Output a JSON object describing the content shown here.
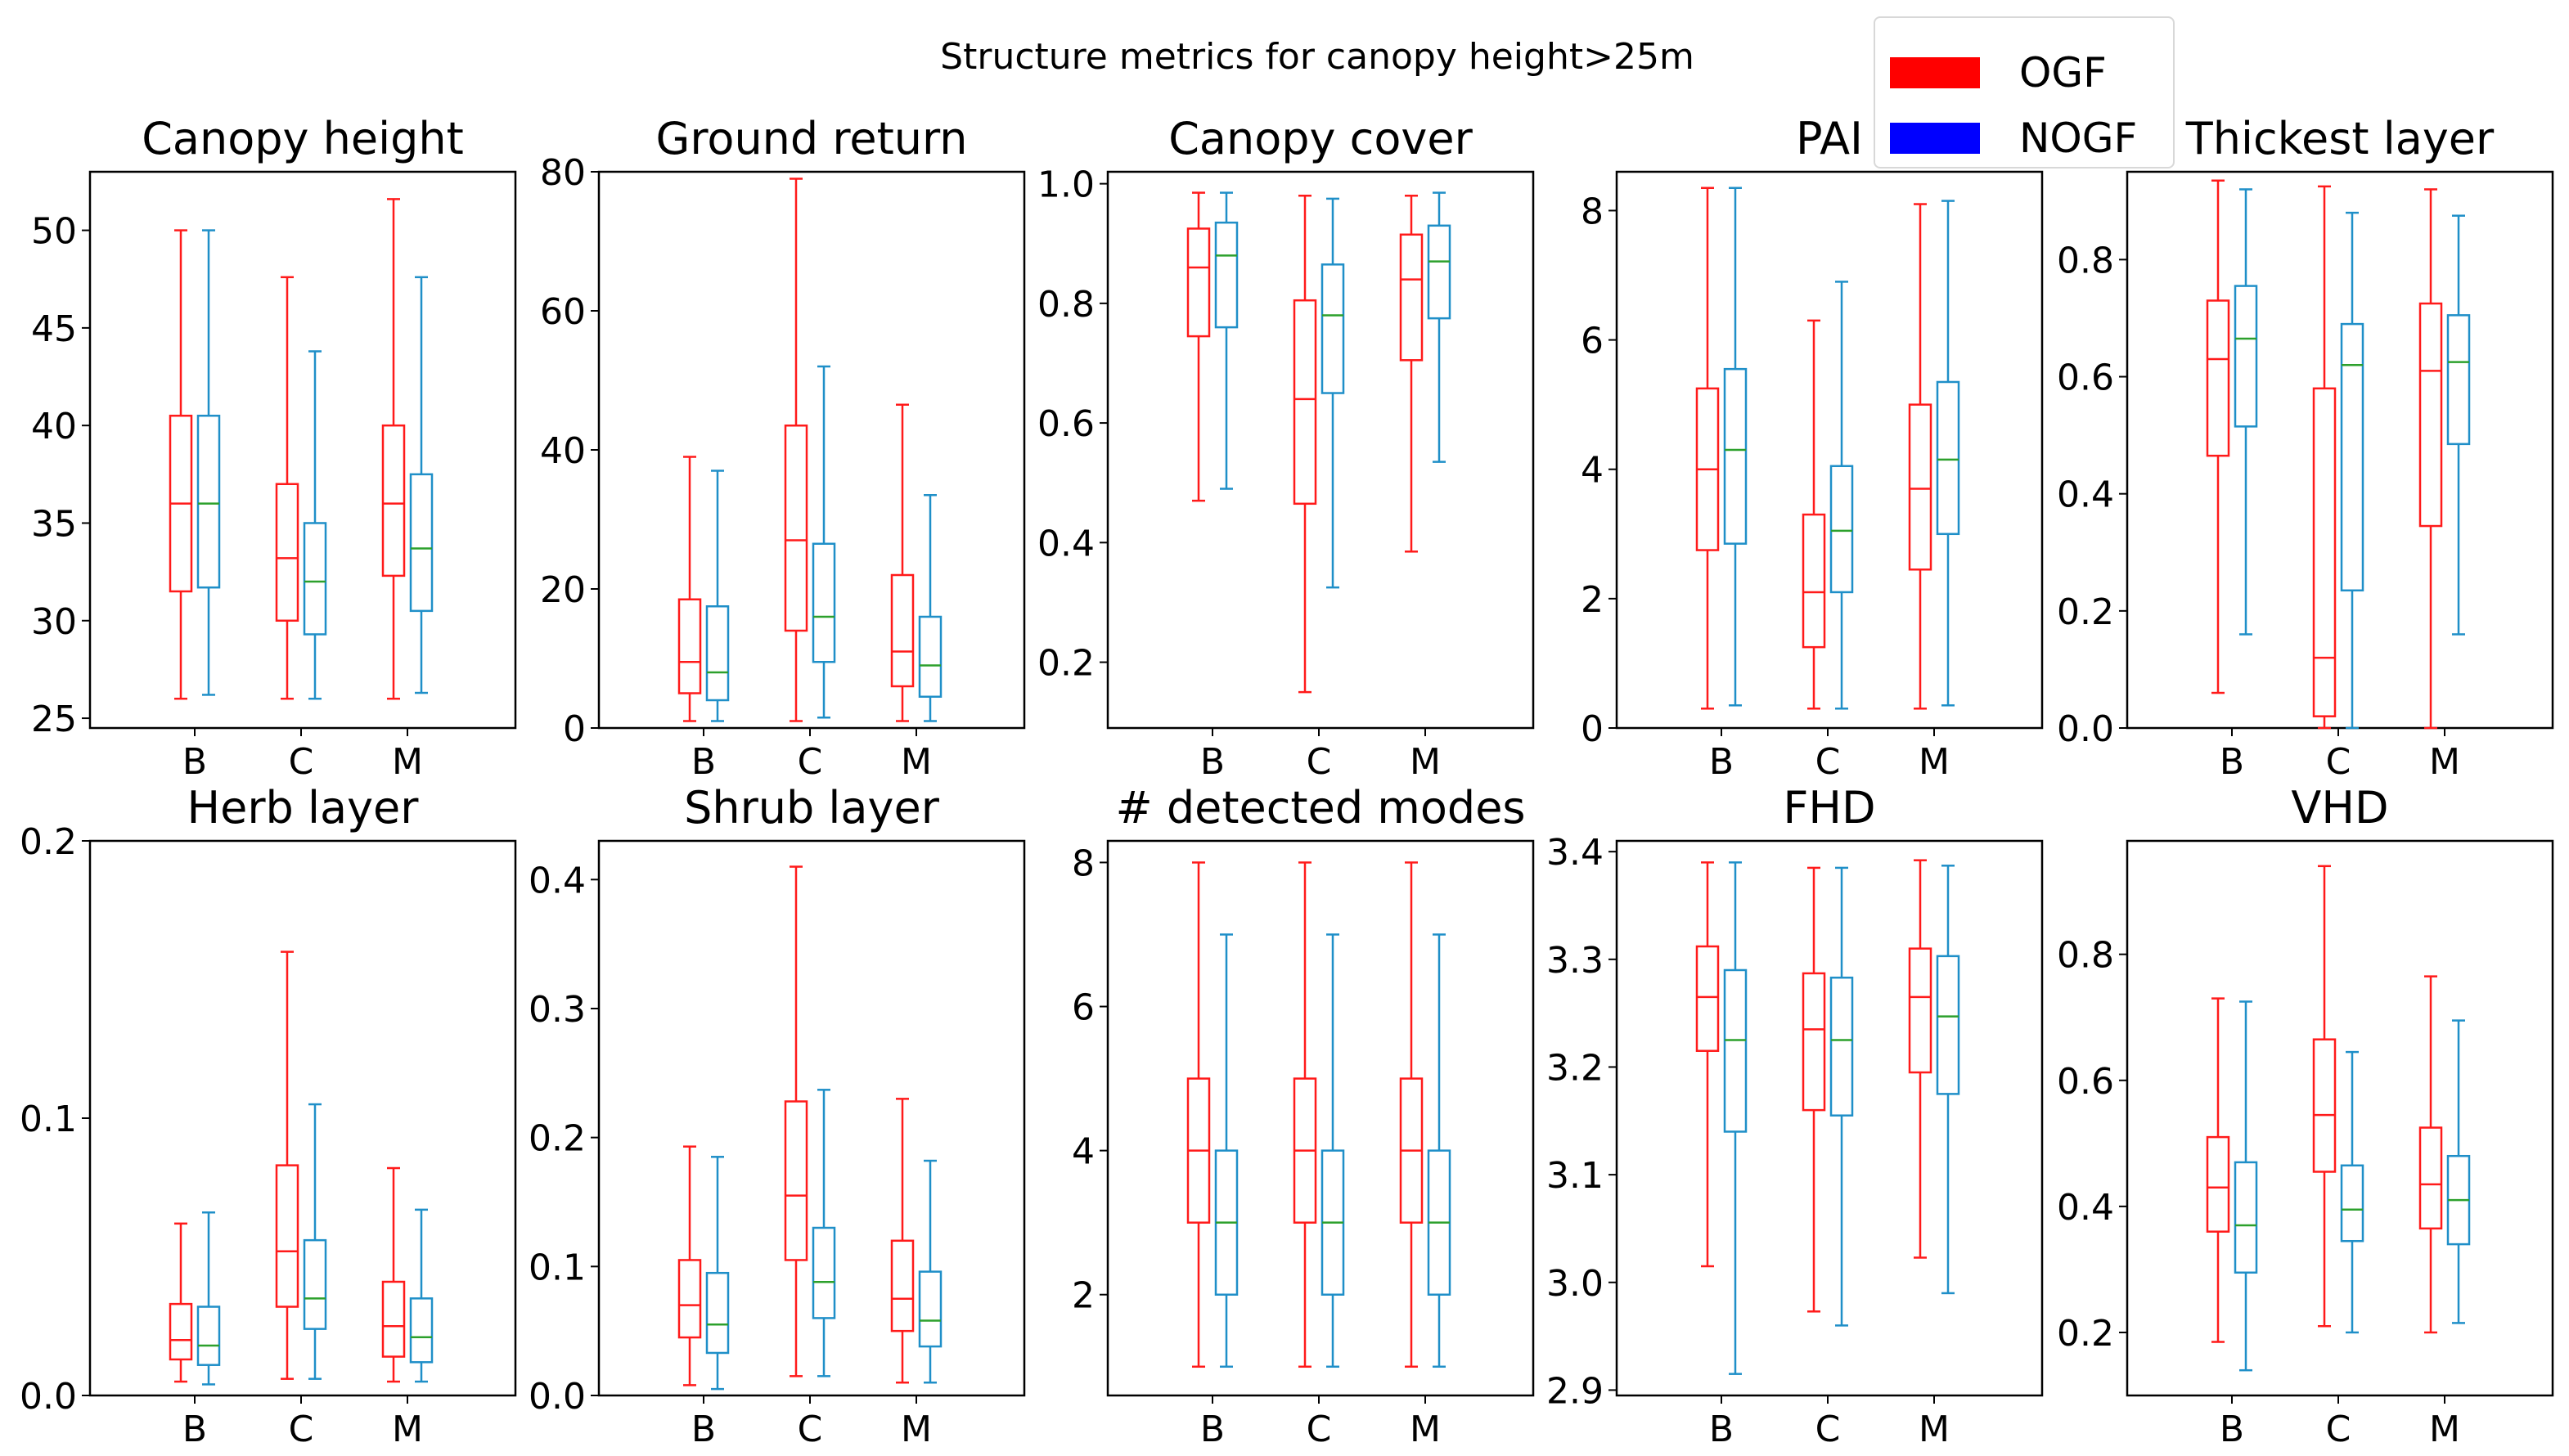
{
  "chart_data": {
    "type": "boxplot",
    "suptitle": "Structure metrics for canopy height>25m",
    "legend": {
      "position": "top-right",
      "entries": [
        {
          "name": "OGF",
          "color": "#ff0000"
        },
        {
          "name": "NOGF",
          "color": "#0000ff"
        }
      ]
    },
    "series_colors": {
      "OGF": "#ff1a1a",
      "NOGF": "#1f8fc8"
    },
    "median_colors": {
      "OGF": "#ff1a1a",
      "NOGF": "#2ca02c"
    },
    "panels": [
      {
        "title": "Canopy height",
        "categories": [
          "B",
          "C",
          "M"
        ],
        "ylim": [
          24.5,
          53
        ],
        "yticks": [
          25,
          30,
          35,
          40,
          45,
          50
        ],
        "ytick_labels": [
          "25",
          "30",
          "35",
          "40",
          "45",
          "50"
        ],
        "boxes": {
          "OGF": [
            {
              "whislo": 26,
              "q1": 31.5,
              "med": 36,
              "q3": 40.5,
              "whishi": 50
            },
            {
              "whislo": 26,
              "q1": 30,
              "med": 33.2,
              "q3": 37,
              "whishi": 47.6
            },
            {
              "whislo": 26,
              "q1": 32.3,
              "med": 36,
              "q3": 40,
              "whishi": 51.6
            }
          ],
          "NOGF": [
            {
              "whislo": 26.2,
              "q1": 31.7,
              "med": 36,
              "q3": 40.5,
              "whishi": 50
            },
            {
              "whislo": 26,
              "q1": 29.3,
              "med": 32,
              "q3": 35,
              "whishi": 43.8
            },
            {
              "whislo": 26.3,
              "q1": 30.5,
              "med": 33.7,
              "q3": 37.5,
              "whishi": 47.6
            }
          ]
        }
      },
      {
        "title": "Ground return",
        "categories": [
          "B",
          "C",
          "M"
        ],
        "ylim": [
          0,
          80
        ],
        "yticks": [
          0,
          20,
          40,
          60,
          80
        ],
        "ytick_labels": [
          "0",
          "20",
          "40",
          "60",
          "80"
        ],
        "boxes": {
          "OGF": [
            {
              "whislo": 1,
              "q1": 5,
              "med": 9.5,
              "q3": 18.5,
              "whishi": 39
            },
            {
              "whislo": 1,
              "q1": 14,
              "med": 27,
              "q3": 43.5,
              "whishi": 79
            },
            {
              "whislo": 1,
              "q1": 6,
              "med": 11,
              "q3": 22,
              "whishi": 46.5
            }
          ],
          "NOGF": [
            {
              "whislo": 1,
              "q1": 4,
              "med": 8,
              "q3": 17.5,
              "whishi": 37
            },
            {
              "whislo": 1.5,
              "q1": 9.5,
              "med": 16,
              "q3": 26.5,
              "whishi": 52
            },
            {
              "whislo": 1,
              "q1": 4.5,
              "med": 9,
              "q3": 16,
              "whishi": 33.5
            }
          ]
        }
      },
      {
        "title": "Canopy cover",
        "categories": [
          "B",
          "C",
          "M"
        ],
        "ylim": [
          0.09,
          1.02
        ],
        "yticks": [
          0.2,
          0.4,
          0.6,
          0.8,
          1.0
        ],
        "ytick_labels": [
          "0.2",
          "0.4",
          "0.6",
          "0.8",
          "1.0"
        ],
        "boxes": {
          "OGF": [
            {
              "whislo": 0.47,
              "q1": 0.745,
              "med": 0.86,
              "q3": 0.925,
              "whishi": 0.985
            },
            {
              "whislo": 0.15,
              "q1": 0.465,
              "med": 0.64,
              "q3": 0.805,
              "whishi": 0.98
            },
            {
              "whislo": 0.385,
              "q1": 0.705,
              "med": 0.84,
              "q3": 0.915,
              "whishi": 0.98
            }
          ],
          "NOGF": [
            {
              "whislo": 0.49,
              "q1": 0.76,
              "med": 0.88,
              "q3": 0.935,
              "whishi": 0.985
            },
            {
              "whislo": 0.325,
              "q1": 0.65,
              "med": 0.78,
              "q3": 0.865,
              "whishi": 0.975
            },
            {
              "whislo": 0.535,
              "q1": 0.775,
              "med": 0.87,
              "q3": 0.93,
              "whishi": 0.985
            }
          ]
        }
      },
      {
        "title": "PAI",
        "categories": [
          "B",
          "C",
          "M"
        ],
        "ylim": [
          0,
          8.6
        ],
        "yticks": [
          0,
          2,
          4,
          6,
          8
        ],
        "ytick_labels": [
          "0",
          "2",
          "4",
          "6",
          "8"
        ],
        "boxes": {
          "OGF": [
            {
              "whislo": 0.3,
              "q1": 2.75,
              "med": 4,
              "q3": 5.25,
              "whishi": 8.35
            },
            {
              "whislo": 0.3,
              "q1": 1.25,
              "med": 2.1,
              "q3": 3.3,
              "whishi": 6.3
            },
            {
              "whislo": 0.3,
              "q1": 2.45,
              "med": 3.7,
              "q3": 5,
              "whishi": 8.1
            }
          ],
          "NOGF": [
            {
              "whislo": 0.35,
              "q1": 2.85,
              "med": 4.3,
              "q3": 5.55,
              "whishi": 8.35
            },
            {
              "whislo": 0.3,
              "q1": 2.1,
              "med": 3.05,
              "q3": 4.05,
              "whishi": 6.9
            },
            {
              "whislo": 0.35,
              "q1": 3,
              "med": 4.15,
              "q3": 5.35,
              "whishi": 8.15
            }
          ]
        }
      },
      {
        "title": "Thickest layer",
        "categories": [
          "B",
          "C",
          "M"
        ],
        "ylim": [
          0,
          0.95
        ],
        "yticks": [
          0,
          0.2,
          0.4,
          0.6,
          0.8
        ],
        "ytick_labels": [
          "0.0",
          "0.2",
          "0.4",
          "0.6",
          "0.8"
        ],
        "boxes": {
          "OGF": [
            {
              "whislo": 0.06,
              "q1": 0.465,
              "med": 0.63,
              "q3": 0.73,
              "whishi": 0.935
            },
            {
              "whislo": 0.0,
              "q1": 0.02,
              "med": 0.12,
              "q3": 0.58,
              "whishi": 0.925
            },
            {
              "whislo": 0.0,
              "q1": 0.345,
              "med": 0.61,
              "q3": 0.725,
              "whishi": 0.92
            }
          ],
          "NOGF": [
            {
              "whislo": 0.16,
              "q1": 0.515,
              "med": 0.665,
              "q3": 0.755,
              "whishi": 0.92
            },
            {
              "whislo": 0.0,
              "q1": 0.235,
              "med": 0.62,
              "q3": 0.69,
              "whishi": 0.88
            },
            {
              "whislo": 0.16,
              "q1": 0.485,
              "med": 0.625,
              "q3": 0.705,
              "whishi": 0.875
            }
          ]
        }
      },
      {
        "title": "Herb layer",
        "categories": [
          "B",
          "C",
          "M"
        ],
        "ylim": [
          0,
          0.2
        ],
        "yticks": [
          0,
          0.1,
          0.2
        ],
        "ytick_labels": [
          "0.0",
          "0.1",
          "0.2"
        ],
        "boxes": {
          "OGF": [
            {
              "whislo": 0.005,
              "q1": 0.013,
              "med": 0.02,
              "q3": 0.033,
              "whishi": 0.062
            },
            {
              "whislo": 0.006,
              "q1": 0.032,
              "med": 0.052,
              "q3": 0.083,
              "whishi": 0.16
            },
            {
              "whislo": 0.005,
              "q1": 0.014,
              "med": 0.025,
              "q3": 0.041,
              "whishi": 0.082
            }
          ],
          "NOGF": [
            {
              "whislo": 0.004,
              "q1": 0.011,
              "med": 0.018,
              "q3": 0.032,
              "whishi": 0.066
            },
            {
              "whislo": 0.006,
              "q1": 0.024,
              "med": 0.035,
              "q3": 0.056,
              "whishi": 0.105
            },
            {
              "whislo": 0.005,
              "q1": 0.012,
              "med": 0.021,
              "q3": 0.035,
              "whishi": 0.067
            }
          ]
        }
      },
      {
        "title": "Shrub layer",
        "categories": [
          "B",
          "C",
          "M"
        ],
        "ylim": [
          0,
          0.43
        ],
        "yticks": [
          0,
          0.1,
          0.2,
          0.3,
          0.4
        ],
        "ytick_labels": [
          "0.0",
          "0.1",
          "0.2",
          "0.3",
          "0.4"
        ],
        "boxes": {
          "OGF": [
            {
              "whislo": 0.008,
              "q1": 0.045,
              "med": 0.07,
              "q3": 0.105,
              "whishi": 0.193
            },
            {
              "whislo": 0.015,
              "q1": 0.105,
              "med": 0.155,
              "q3": 0.228,
              "whishi": 0.41
            },
            {
              "whislo": 0.01,
              "q1": 0.05,
              "med": 0.075,
              "q3": 0.12,
              "whishi": 0.23
            }
          ],
          "NOGF": [
            {
              "whislo": 0.005,
              "q1": 0.033,
              "med": 0.055,
              "q3": 0.095,
              "whishi": 0.185
            },
            {
              "whislo": 0.015,
              "q1": 0.06,
              "med": 0.088,
              "q3": 0.13,
              "whishi": 0.237
            },
            {
              "whislo": 0.01,
              "q1": 0.038,
              "med": 0.058,
              "q3": 0.096,
              "whishi": 0.182
            }
          ]
        }
      },
      {
        "title": "# detected modes",
        "categories": [
          "B",
          "C",
          "M"
        ],
        "ylim": [
          0.6,
          8.3
        ],
        "yticks": [
          2,
          4,
          6,
          8
        ],
        "ytick_labels": [
          "2",
          "4",
          "6",
          "8"
        ],
        "boxes": {
          "OGF": [
            {
              "whislo": 1,
              "q1": 3,
              "med": 4,
              "q3": 5,
              "whishi": 8
            },
            {
              "whislo": 1,
              "q1": 3,
              "med": 4,
              "q3": 5,
              "whishi": 8
            },
            {
              "whislo": 1,
              "q1": 3,
              "med": 4,
              "q3": 5,
              "whishi": 8
            }
          ],
          "NOGF": [
            {
              "whislo": 1,
              "q1": 2,
              "med": 3,
              "q3": 4,
              "whishi": 7
            },
            {
              "whislo": 1,
              "q1": 2,
              "med": 3,
              "q3": 4,
              "whishi": 7
            },
            {
              "whislo": 1,
              "q1": 2,
              "med": 3,
              "q3": 4,
              "whishi": 7
            }
          ]
        }
      },
      {
        "title": "FHD",
        "categories": [
          "B",
          "C",
          "M"
        ],
        "ylim": [
          2.895,
          3.41
        ],
        "yticks": [
          2.9,
          3.0,
          3.1,
          3.2,
          3.3,
          3.4
        ],
        "ytick_labels": [
          "2.9",
          "3.0",
          "3.1",
          "3.2",
          "3.3",
          "3.4"
        ],
        "boxes": {
          "OGF": [
            {
              "whislo": 3.015,
              "q1": 3.215,
              "med": 3.265,
              "q3": 3.312,
              "whishi": 3.39
            },
            {
              "whislo": 2.973,
              "q1": 3.16,
              "med": 3.235,
              "q3": 3.287,
              "whishi": 3.385
            },
            {
              "whislo": 3.023,
              "q1": 3.195,
              "med": 3.265,
              "q3": 3.31,
              "whishi": 3.392
            }
          ],
          "NOGF": [
            {
              "whislo": 2.915,
              "q1": 3.14,
              "med": 3.225,
              "q3": 3.29,
              "whishi": 3.39
            },
            {
              "whislo": 2.96,
              "q1": 3.155,
              "med": 3.225,
              "q3": 3.283,
              "whishi": 3.385
            },
            {
              "whislo": 2.99,
              "q1": 3.175,
              "med": 3.247,
              "q3": 3.303,
              "whishi": 3.387
            }
          ]
        }
      },
      {
        "title": "VHD",
        "categories": [
          "B",
          "C",
          "M"
        ],
        "ylim": [
          0.1,
          0.98
        ],
        "yticks": [
          0.2,
          0.4,
          0.6,
          0.8
        ],
        "ytick_labels": [
          "0.2",
          "0.4",
          "0.6",
          "0.8"
        ],
        "boxes": {
          "OGF": [
            {
              "whislo": 0.185,
              "q1": 0.36,
              "med": 0.43,
              "q3": 0.51,
              "whishi": 0.73
            },
            {
              "whislo": 0.21,
              "q1": 0.455,
              "med": 0.545,
              "q3": 0.665,
              "whishi": 0.94
            },
            {
              "whislo": 0.2,
              "q1": 0.365,
              "med": 0.435,
              "q3": 0.525,
              "whishi": 0.765
            }
          ],
          "NOGF": [
            {
              "whislo": 0.14,
              "q1": 0.295,
              "med": 0.37,
              "q3": 0.47,
              "whishi": 0.725
            },
            {
              "whislo": 0.2,
              "q1": 0.345,
              "med": 0.395,
              "q3": 0.465,
              "whishi": 0.645
            },
            {
              "whislo": 0.215,
              "q1": 0.34,
              "med": 0.41,
              "q3": 0.48,
              "whishi": 0.695
            }
          ]
        }
      }
    ]
  }
}
